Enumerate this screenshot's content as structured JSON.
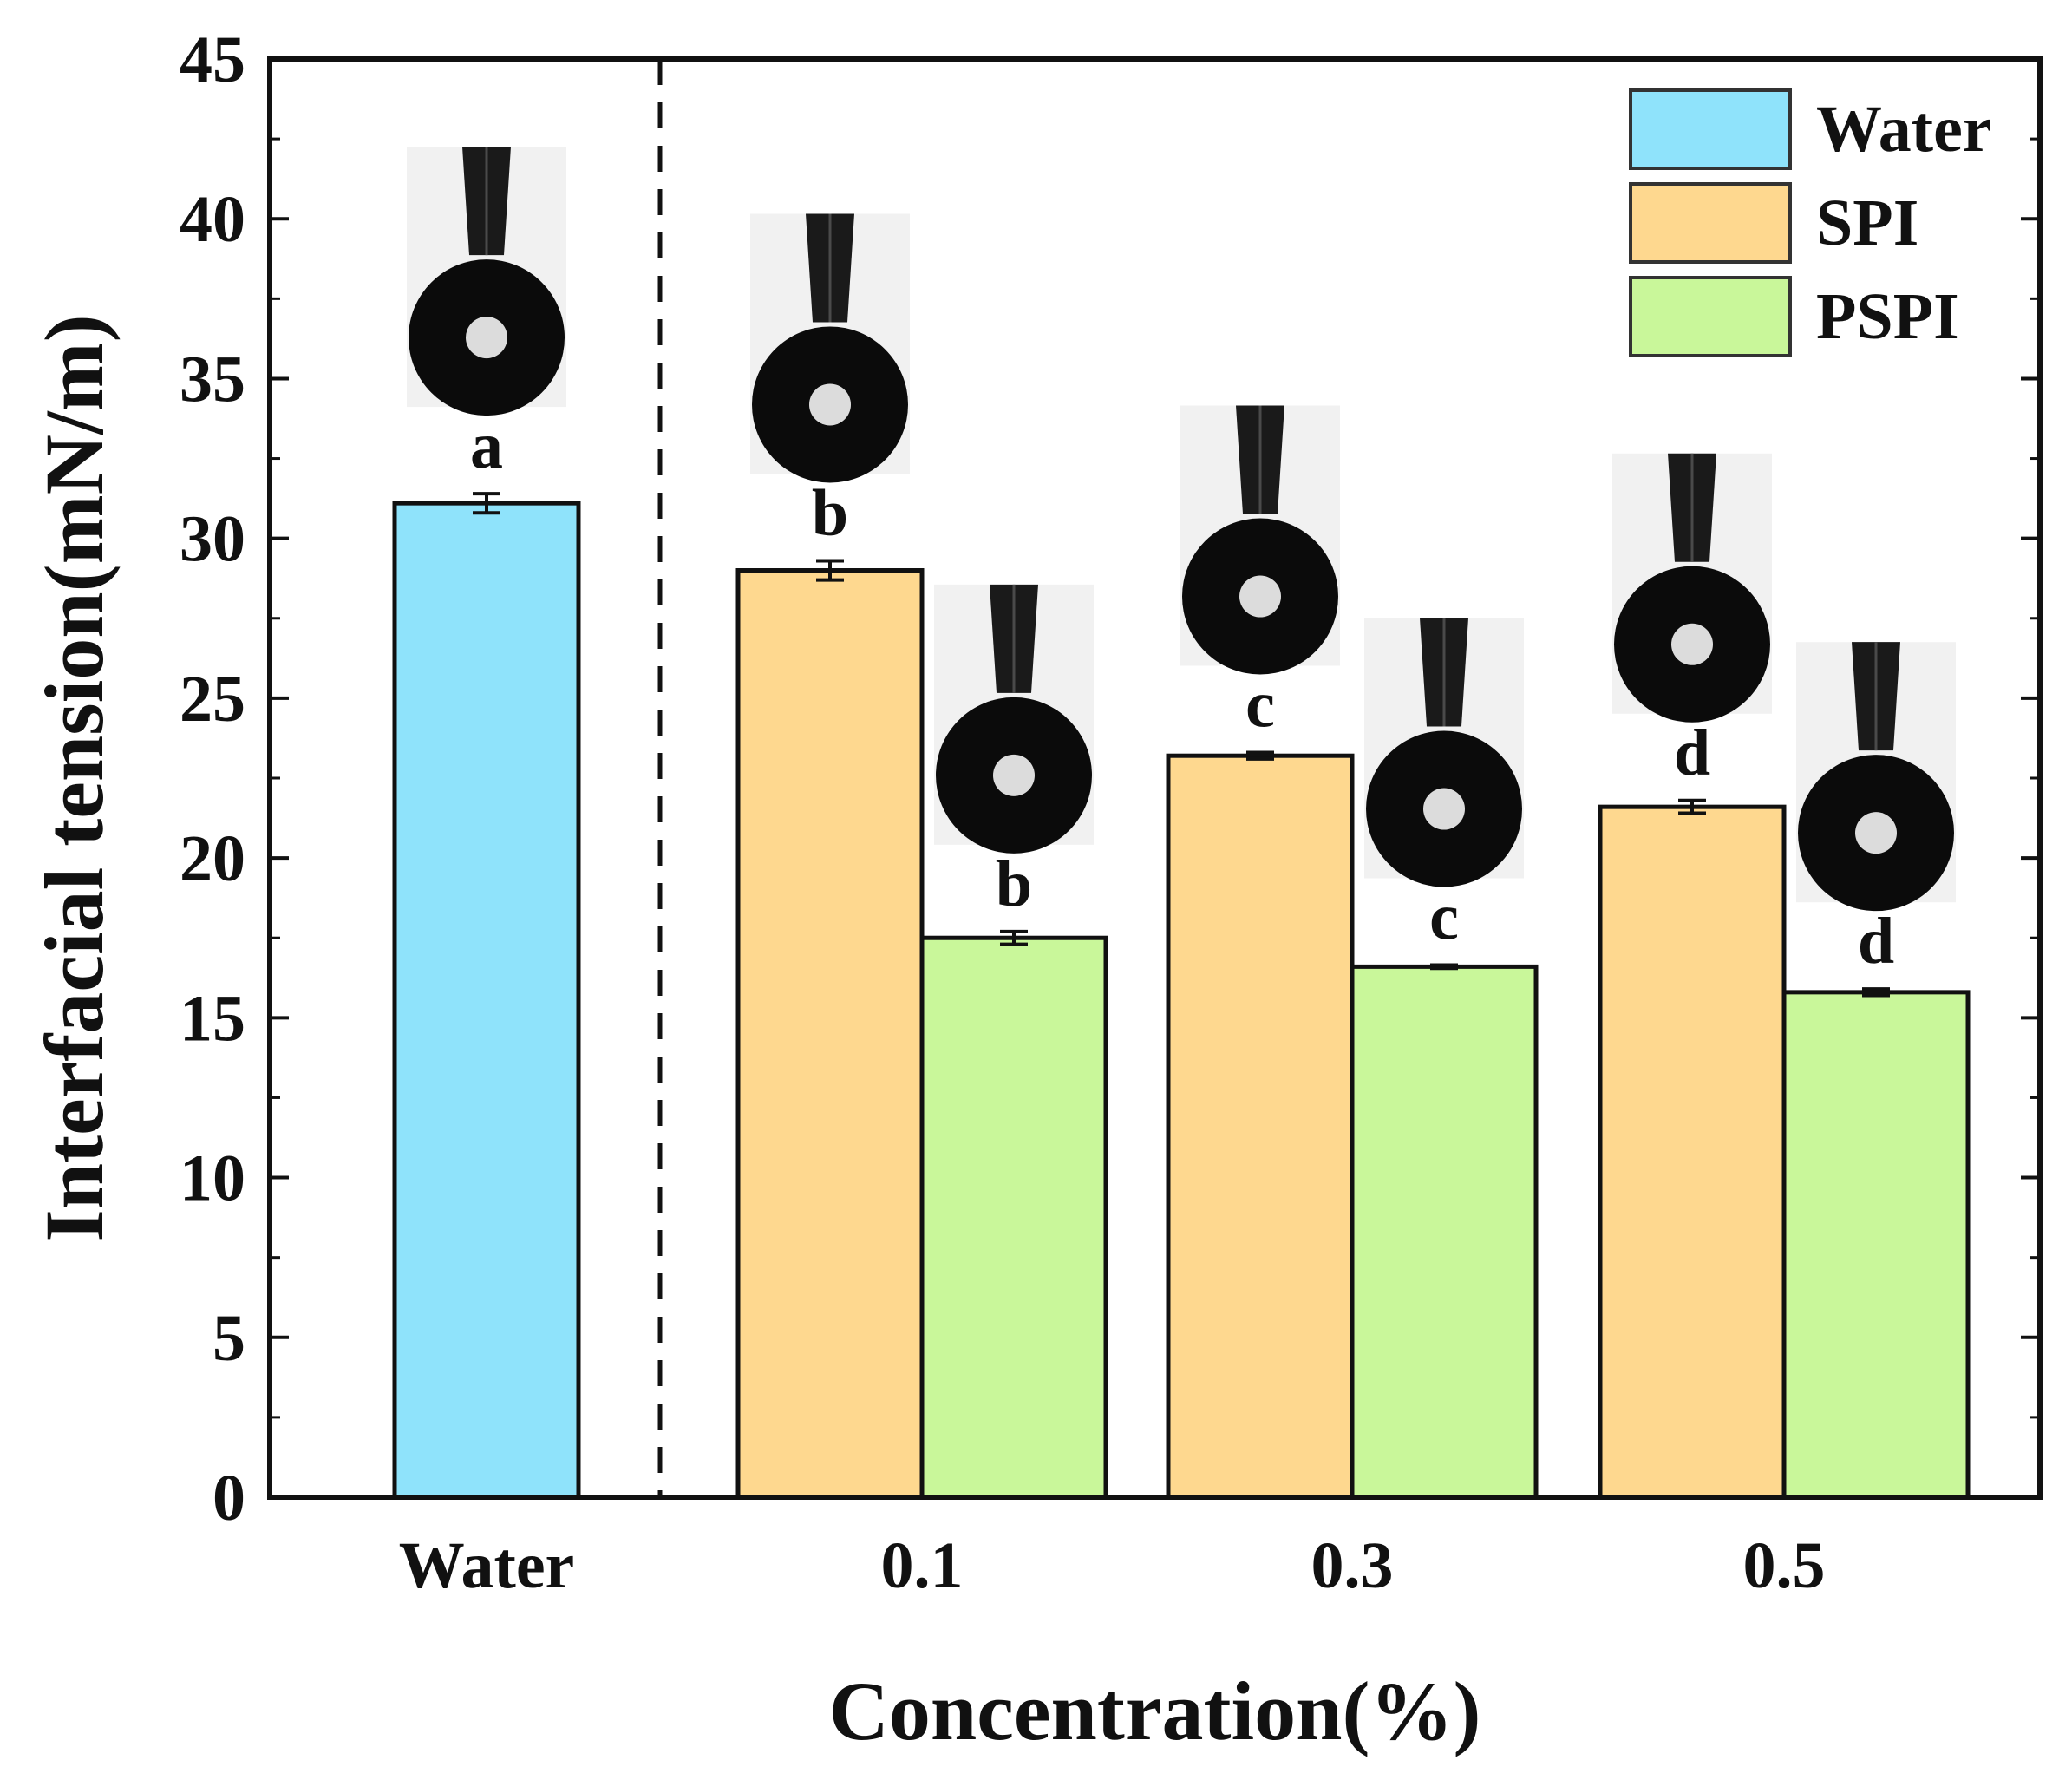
{
  "chart_data": {
    "type": "bar",
    "xlabel": "Concentration(%)",
    "ylabel": "Interfacial tension(mN/m)",
    "ylim": [
      0,
      45
    ],
    "yticks": [
      0,
      5,
      10,
      15,
      20,
      25,
      30,
      35,
      40,
      45
    ],
    "categories": [
      "Water",
      "0.1",
      "0.3",
      "0.5"
    ],
    "colors": {
      "Water": "#8fe3fb",
      "SPI": "#fed88f",
      "PSPI": "#c9f79a",
      "axis": "#111111"
    },
    "series": [
      {
        "name": "Water",
        "values": [
          31.1,
          null,
          null,
          null
        ],
        "errors": [
          0.3,
          null,
          null,
          null
        ],
        "letters": [
          "a",
          "",
          "",
          ""
        ]
      },
      {
        "name": "SPI",
        "values": [
          null,
          29.0,
          23.2,
          21.6
        ],
        "errors": [
          null,
          0.3,
          0.1,
          0.2
        ],
        "letters": [
          "",
          "b",
          "c",
          "d"
        ]
      },
      {
        "name": "PSPI",
        "values": [
          null,
          17.5,
          16.6,
          15.8
        ],
        "errors": [
          null,
          0.2,
          0.05,
          0.1
        ],
        "letters": [
          "",
          "b",
          "c",
          "d"
        ]
      }
    ],
    "legend": {
      "position": "top-right",
      "entries": [
        "Water",
        "SPI",
        "PSPI"
      ]
    },
    "separator": "dashed vertical line between Water and 0.1",
    "inset_images": "pendant drop photographs above each bar"
  }
}
